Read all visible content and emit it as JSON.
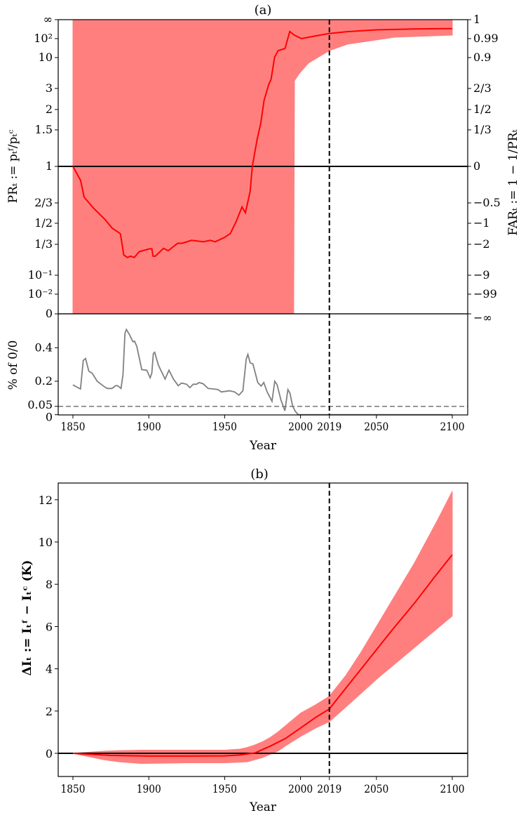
{
  "colors": {
    "mean": "#ff0000",
    "band": "#ff7f7f",
    "gray": "#808080",
    "axis": "#000000"
  },
  "chart_data": [
    {
      "type": "line",
      "title": "(a)",
      "xlabel": "Year",
      "ylabel": "PRₜ := pₜᶠ/pₜᶜ",
      "ylabel_right": "FARₜ := 1 − 1/PRₜ",
      "x_ticks": [
        1850,
        1900,
        1950,
        2000,
        2019,
        2050,
        2100
      ],
      "xlim": [
        1840,
        2110
      ],
      "y_ticks": [
        {
          "value": 1000,
          "label": "∞",
          "right_label": "1"
        },
        {
          "value": 100,
          "label": "10²",
          "right_label": "0.99"
        },
        {
          "value": 10,
          "label": "10",
          "right_label": "0.9"
        },
        {
          "value": 3,
          "label": "3",
          "right_label": "2/3"
        },
        {
          "value": 2,
          "label": "2",
          "right_label": "1/2"
        },
        {
          "value": 1.5,
          "label": "1.5",
          "right_label": "1/3"
        },
        {
          "value": 1,
          "label": "1",
          "right_label": "0"
        },
        {
          "value": 0.6667,
          "label": "2/3",
          "right_label": "−0.5"
        },
        {
          "value": 0.5,
          "label": "1/2",
          "right_label": "−1"
        },
        {
          "value": 0.3333,
          "label": "1/3",
          "right_label": "−2"
        },
        {
          "value": 0.1,
          "label": "10⁻¹",
          "right_label": "−9"
        },
        {
          "value": 0.01,
          "label": "10⁻²",
          "right_label": "−99"
        },
        {
          "value": 0.001,
          "label": "0",
          "right_label": "−∞"
        }
      ],
      "reference_line_y": 1,
      "vertical_line_x": 2019,
      "series": [
        {
          "name": "PR mean",
          "x": [
            1850,
            1855.1,
            1857.4,
            1863.5,
            1871.3,
            1875.9,
            1881.2,
            1882,
            1883.5,
            1885.9,
            1888,
            1890.5,
            1893.6,
            1900.5,
            1902,
            1902.8,
            1904.3,
            1909.7,
            1912.8,
            1919,
            1922,
            1928.2,
            1936,
            1940.5,
            1943.7,
            1949.8,
            1953.7,
            1957.5,
            1961.4,
            1963.7,
            1966.8,
            1968.2,
            1971.4,
            1973.7,
            1976,
            1979,
            1980.6,
            1982.9,
            1985.2,
            1989.8,
            1992.9,
            1996,
            2000.6,
            2010,
            2019,
            2030,
            2050,
            2075,
            2100
          ],
          "y": [
            1,
            0.855,
            0.71,
            0.62,
            0.525,
            0.455,
            0.41,
            0.36,
            0.22,
            0.2,
            0.21,
            0.2,
            0.25,
            0.28,
            0.28,
            0.21,
            0.21,
            0.285,
            0.26,
            0.34,
            0.34,
            0.36,
            0.35,
            0.36,
            0.35,
            0.38,
            0.41,
            0.51,
            0.63,
            0.58,
            0.76,
            1,
            1.35,
            1.63,
            2.4,
            3.5,
            4.3,
            10.5,
            23,
            30,
            235,
            150,
            100,
            140,
            186,
            230,
            290,
            325,
            338
          ]
        }
      ],
      "band": {
        "name": "uncertainty range",
        "x": [
          1850,
          1995.5,
          1996,
          1999,
          2005.3,
          2019,
          2031,
          2062,
          2100
        ],
        "lower": [
          0.001,
          0.001,
          4.05,
          5.3,
          8.1,
          23.4,
          51,
          119,
          153
        ],
        "upper": [
          1000,
          1000,
          1000,
          1000,
          1000,
          1000,
          1000,
          1000,
          1000
        ]
      }
    },
    {
      "type": "line",
      "title": "",
      "xlabel": "Year",
      "ylabel": "% of 0/0",
      "x_ticks": [
        1850,
        1900,
        1950,
        2000,
        2019,
        2050,
        2100
      ],
      "y_ticks": [
        0,
        0.05,
        0.2,
        0.4
      ],
      "ylim": [
        0,
        0.6
      ],
      "threshold_line_y": 0.05,
      "series": [
        {
          "name": "% of 0/0",
          "x": [
            1850,
            1852.8,
            1855,
            1856.8,
            1858.3,
            1860.5,
            1862.7,
            1866,
            1870.3,
            1872.5,
            1875.8,
            1878,
            1879.5,
            1881.7,
            1883,
            1884.3,
            1885.2,
            1887.3,
            1889.5,
            1890.6,
            1892.1,
            1895.4,
            1898.7,
            1900.9,
            1902,
            1903,
            1903.9,
            1906.3,
            1910.7,
            1913.3,
            1916.2,
            1919.4,
            1921.6,
            1924.9,
            1927.1,
            1929.3,
            1931.4,
            1933.2,
            1935.8,
            1939.1,
            1942.4,
            1945.6,
            1947.8,
            1953.3,
            1956.6,
            1959.4,
            1962,
            1964.2,
            1965.3,
            1966.8,
            1968.6,
            1971.8,
            1974,
            1975.8,
            1978,
            1981.2,
            1983,
            1984.5,
            1987.1,
            1989.7,
            1991.7,
            1993,
            1994.8,
            1996.5,
            1998.5,
            2100
          ],
          "y": [
            0.178,
            0.164,
            0.154,
            0.324,
            0.336,
            0.26,
            0.248,
            0.2,
            0.17,
            0.157,
            0.157,
            0.173,
            0.173,
            0.157,
            0.24,
            0.485,
            0.509,
            0.478,
            0.436,
            0.439,
            0.408,
            0.269,
            0.266,
            0.22,
            0.248,
            0.366,
            0.373,
            0.297,
            0.213,
            0.266,
            0.213,
            0.173,
            0.189,
            0.182,
            0.162,
            0.182,
            0.182,
            0.192,
            0.185,
            0.157,
            0.154,
            0.15,
            0.136,
            0.143,
            0.136,
            0.117,
            0.143,
            0.331,
            0.36,
            0.31,
            0.303,
            0.192,
            0.171,
            0.192,
            0.136,
            0.08,
            0.2,
            0.18,
            0.087,
            0.024,
            0.15,
            0.129,
            0.052,
            0.021,
            0,
            0
          ]
        }
      ]
    },
    {
      "type": "line",
      "title": "(b)",
      "xlabel": "Year",
      "ylabel": "ΔIₜ := Iₜᶠ − Iₜᶜ (K)",
      "x_ticks": [
        1850,
        1900,
        1950,
        2000,
        2019,
        2050,
        2100
      ],
      "y_ticks": [
        0,
        2,
        4,
        6,
        8,
        10,
        12
      ],
      "ylim": [
        -1.1,
        13.1
      ],
      "reference_line_y": 0,
      "vertical_line_x": 2019,
      "series": [
        {
          "name": "ΔI mean",
          "x": [
            1850,
            1875,
            1900,
            1925,
            1950,
            1960,
            1970,
            1980,
            1990,
            2000,
            2010,
            2019,
            2030,
            2040,
            2050,
            2060,
            2075,
            2090,
            2100
          ],
          "y": [
            0,
            -0.1,
            -0.13,
            -0.13,
            -0.12,
            -0.08,
            0.02,
            0.34,
            0.7,
            1.2,
            1.7,
            2.1,
            3.1,
            4.0,
            4.9,
            5.8,
            7.1,
            8.5,
            9.4
          ]
        }
      ],
      "band": {
        "name": "uncertainty range",
        "x": [
          1850,
          1870,
          1880,
          1895,
          1925,
          1950,
          1960,
          1965,
          1970,
          1975,
          1980,
          1985,
          1990,
          2000,
          2010,
          2019,
          2030,
          2040,
          2050,
          2060,
          2075,
          2090,
          2100
        ],
        "lower": [
          0,
          -0.3,
          -0.4,
          -0.48,
          -0.45,
          -0.45,
          -0.42,
          -0.4,
          -0.3,
          -0.2,
          -0.05,
          0.1,
          0.35,
          0.8,
          1.2,
          1.5,
          2.2,
          2.85,
          3.5,
          4.1,
          5.0,
          5.9,
          6.5
        ],
        "upper": [
          0,
          0.1,
          0.13,
          0.15,
          0.15,
          0.15,
          0.2,
          0.28,
          0.4,
          0.55,
          0.75,
          1.0,
          1.3,
          1.9,
          2.3,
          2.7,
          3.7,
          4.8,
          6.0,
          7.2,
          9.0,
          11.0,
          12.4
        ]
      }
    }
  ]
}
